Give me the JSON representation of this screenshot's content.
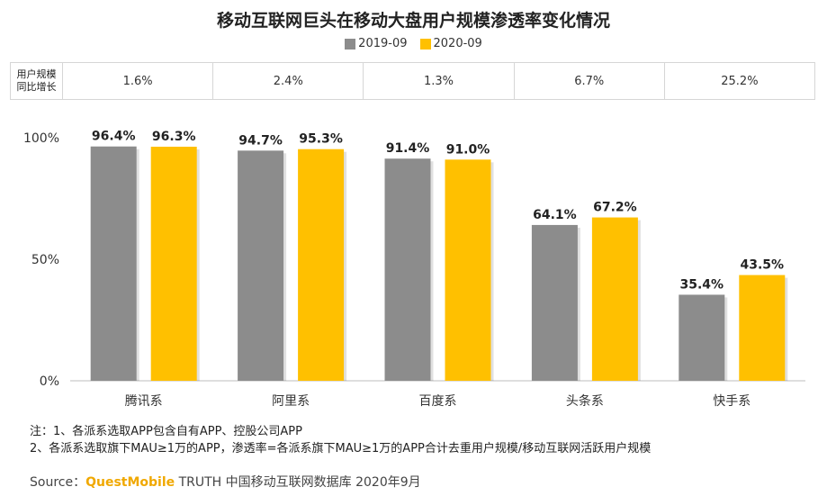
{
  "title": "移动互联网巨头在移动大盘用户规模渗透率变化情况",
  "legend": [
    {
      "name": "2019-09",
      "color": "#8c8c8c"
    },
    {
      "name": "2020-09",
      "color": "#ffc000"
    }
  ],
  "growth_row": {
    "header": "用户规模\n同比增长",
    "values": [
      "1.6%",
      "2.4%",
      "1.3%",
      "6.7%",
      "25.2%"
    ]
  },
  "chart_data": {
    "type": "bar",
    "categories": [
      "腾讯系",
      "阿里系",
      "百度系",
      "头条系",
      "快手系"
    ],
    "series": [
      {
        "name": "2019-09",
        "values": [
          96.4,
          94.7,
          91.4,
          64.1,
          35.4
        ],
        "color": "#8c8c8c"
      },
      {
        "name": "2020-09",
        "values": [
          96.3,
          95.3,
          91.0,
          67.2,
          43.5
        ],
        "color": "#ffc000"
      }
    ],
    "ylim": [
      0,
      100
    ],
    "yticks": [
      "0%",
      "50%",
      "100%"
    ],
    "ytick_values": [
      0,
      50,
      100
    ],
    "value_suffix": "%"
  },
  "notes": [
    "注：1、各派系选取APP包含自有APP、控股公司APP",
    "2、各派系选取旗下MAU≥1万的APP，渗透率=各派系旗下MAU≥1万的APP合计去重用户规模/移动互联网活跃用户规模"
  ],
  "source": {
    "prefix": "Source：",
    "brand": "QuestMobile",
    "rest": " TRUTH 中国移动互联网数据库 2020年9月"
  }
}
